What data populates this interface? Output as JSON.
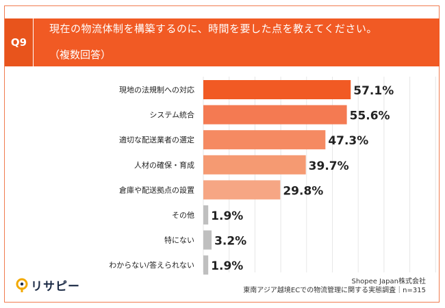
{
  "question": {
    "number": "Q9",
    "title": "現在の物流体制を構築するのに、時間を要した点を教えてください。",
    "subtitle": "（複数回答）"
  },
  "chart_data": {
    "type": "bar",
    "orientation": "horizontal",
    "categories": [
      "現地の法規制への対応",
      "システム統合",
      "適切な配送業者の選定",
      "人材の確保・育成",
      "倉庫や配送拠点の設置",
      "その他",
      "特にない",
      "わからない/答えられない"
    ],
    "values": [
      57.1,
      55.6,
      47.3,
      39.7,
      29.8,
      1.9,
      3.2,
      1.9
    ],
    "value_labels": [
      "57.1%",
      "55.6%",
      "47.3%",
      "39.7%",
      "29.8%",
      "1.9%",
      "3.2%",
      "1.9%"
    ],
    "colors": [
      "#f15a24",
      "#f47a52",
      "#f58a62",
      "#f59a72",
      "#f6a684",
      "#bfbfbf",
      "#bfbfbf",
      "#bfbfbf"
    ],
    "xlim": [
      0,
      100
    ],
    "grid": true
  },
  "footer": {
    "source_company": "Shopee Japan株式会社",
    "survey": "東南アジア越境ECでの物流管理に関する実態調査｜n=315"
  },
  "logo": {
    "text": "リサピー",
    "icon": "search-magnifier-icon",
    "icon_color": "#f2a900"
  }
}
